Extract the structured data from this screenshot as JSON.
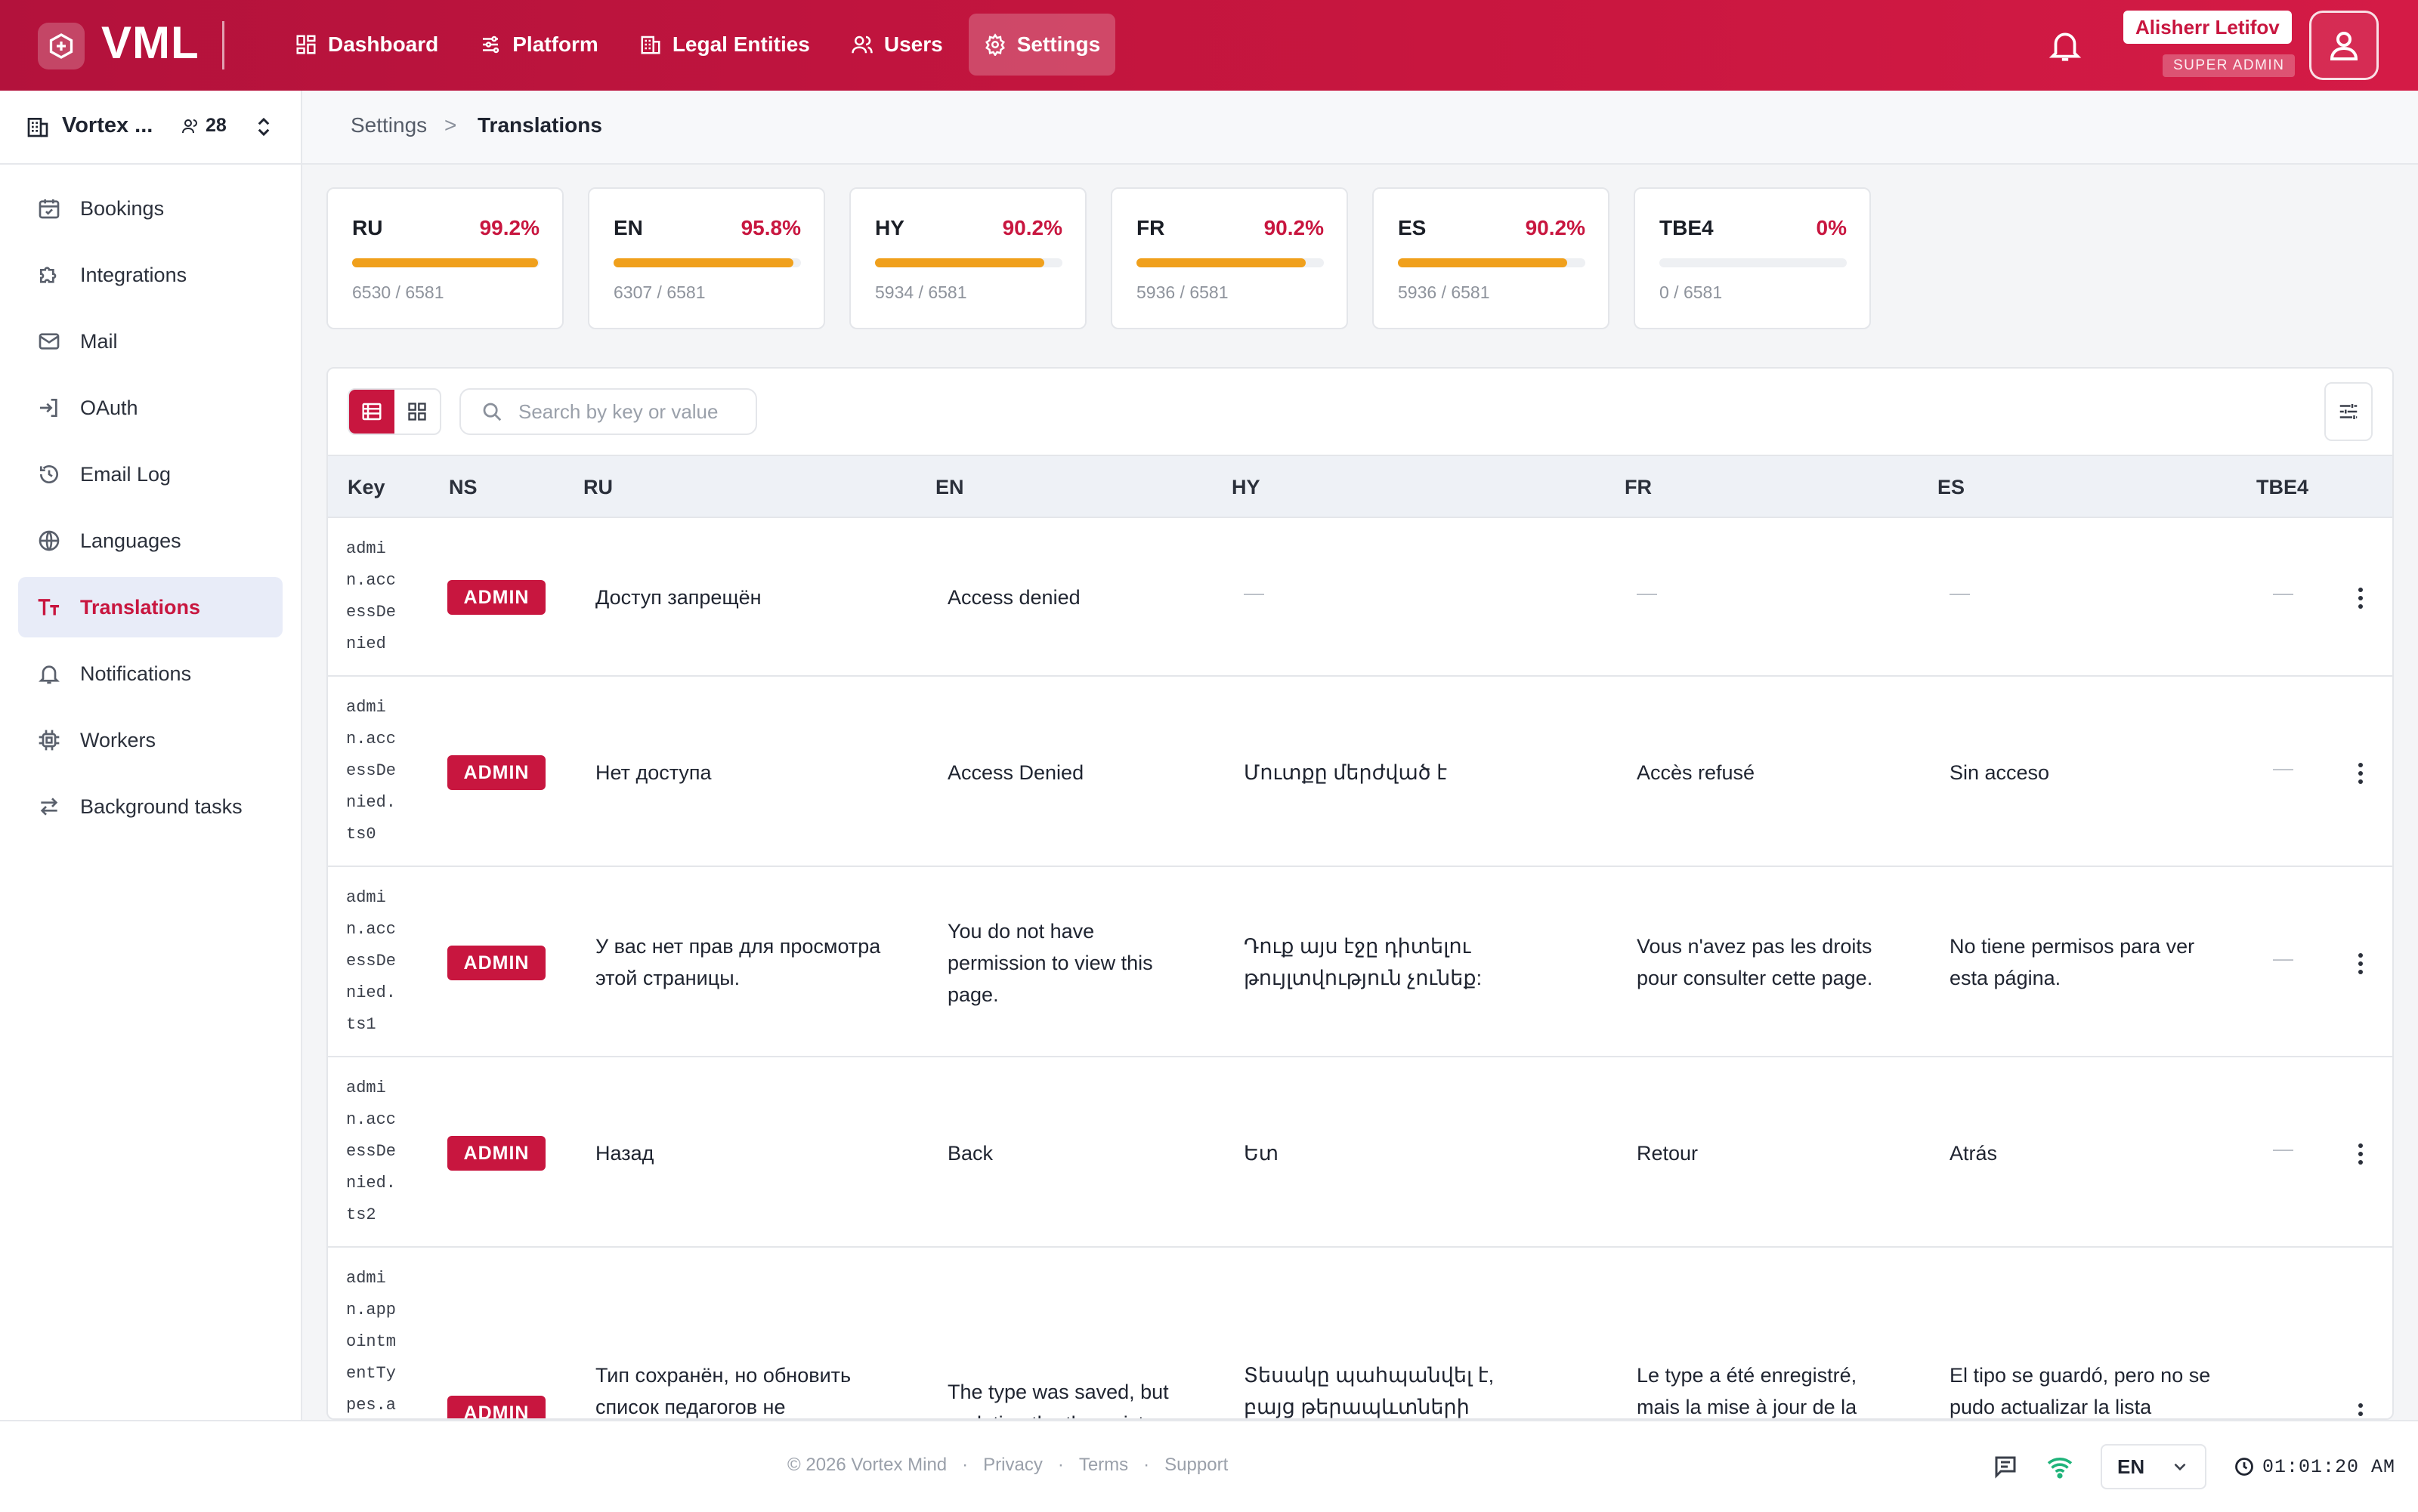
{
  "app": {
    "logo": "VML"
  },
  "nav": [
    {
      "label": "Dashboard",
      "icon": "dashboard-icon"
    },
    {
      "label": "Platform",
      "icon": "sliders-icon"
    },
    {
      "label": "Legal Entities",
      "icon": "building-icon"
    },
    {
      "label": "Users",
      "icon": "users-icon"
    },
    {
      "label": "Settings",
      "icon": "gear-icon",
      "active": true
    }
  ],
  "user": {
    "name": "Alisherr Letifov",
    "role": "SUPER ADMIN"
  },
  "org": {
    "name": "Vortex ...",
    "members": "28"
  },
  "sidebar": {
    "items": [
      {
        "label": "Bookings",
        "icon": "calendar-icon"
      },
      {
        "label": "Integrations",
        "icon": "puzzle-icon"
      },
      {
        "label": "Mail",
        "icon": "mail-icon"
      },
      {
        "label": "OAuth",
        "icon": "login-icon"
      },
      {
        "label": "Email Log",
        "icon": "history-icon"
      },
      {
        "label": "Languages",
        "icon": "globe-icon"
      },
      {
        "label": "Translations",
        "icon": "text-size-icon",
        "active": true
      },
      {
        "label": "Notifications",
        "icon": "bell-icon"
      },
      {
        "label": "Workers",
        "icon": "cpu-icon"
      },
      {
        "label": "Background tasks",
        "icon": "swap-icon"
      }
    ]
  },
  "breadcrumb": {
    "parent": "Settings",
    "separator": ">",
    "current": "Translations"
  },
  "languages": [
    {
      "code": "RU",
      "percent": "99.2%",
      "progress": 0.992,
      "count": "6530 / 6581"
    },
    {
      "code": "EN",
      "percent": "95.8%",
      "progress": 0.958,
      "count": "6307 / 6581"
    },
    {
      "code": "HY",
      "percent": "90.2%",
      "progress": 0.902,
      "count": "5934 / 6581"
    },
    {
      "code": "FR",
      "percent": "90.2%",
      "progress": 0.902,
      "count": "5936 / 6581"
    },
    {
      "code": "ES",
      "percent": "90.2%",
      "progress": 0.902,
      "count": "5936 / 6581"
    },
    {
      "code": "TBE4",
      "percent": "0%",
      "progress": 0,
      "count": "0 / 6581"
    }
  ],
  "search": {
    "placeholder": "Search by key or value"
  },
  "table": {
    "columns": [
      "Key",
      "NS",
      "RU",
      "EN",
      "HY",
      "FR",
      "ES",
      "TBE4"
    ],
    "empty": "—",
    "rows": [
      {
        "key": "admi\nn.acc\nessDe\nnied",
        "ns": "ADMIN",
        "ru": "Доступ запрещён",
        "en": "Access denied",
        "hy": "",
        "fr": "",
        "es": "",
        "tbe4": ""
      },
      {
        "key": "admi\nn.acc\nessDe\nnied.\nts0",
        "ns": "ADMIN",
        "ru": "Нет доступа",
        "en": "Access Denied",
        "hy": "Մուտքը մերժված է",
        "fr": "Accès refusé",
        "es": "Sin acceso",
        "tbe4": ""
      },
      {
        "key": "admi\nn.acc\nessDe\nnied.\nts1",
        "ns": "ADMIN",
        "ru": "У вас нет прав для просмотра этой страницы.",
        "en": "You do not have permission to view this page.",
        "hy": "Դուք այս էջը դիտելու թույլտվություն չունեք:",
        "fr": "Vous n'avez pas les droits pour consulter cette page.",
        "es": "No tiene permisos para ver esta página.",
        "tbe4": ""
      },
      {
        "key": "admi\nn.acc\nessDe\nnied.\nts2",
        "ns": "ADMIN",
        "ru": "Назад",
        "en": "Back",
        "hy": "Ետ",
        "fr": "Retour",
        "es": "Atrás",
        "tbe4": ""
      },
      {
        "key": "admi\nn.app\nointm\nentTy\npes.a",
        "ns": "ADMIN",
        "ru": "Тип сохранён, но обновить список педагогов не",
        "en": "The type was saved, but updating the therapist",
        "hy": "Տեսակը պահպանվել է, բայց թերապևտների ցանկը",
        "fr": "Le type a été enregistré, mais la mise à jour de la",
        "es": "El tipo se guardó, pero no se pudo actualizar la lista",
        "tbe4": ""
      }
    ]
  },
  "footer": {
    "copyright": "© 2026 Vortex Mind",
    "links": [
      "Privacy",
      "Terms",
      "Support"
    ],
    "dot": "·",
    "language": "EN",
    "time": "01:01:20 AM"
  },
  "colors": {
    "brand": "#c8163f",
    "progress": "#f0a01c"
  }
}
